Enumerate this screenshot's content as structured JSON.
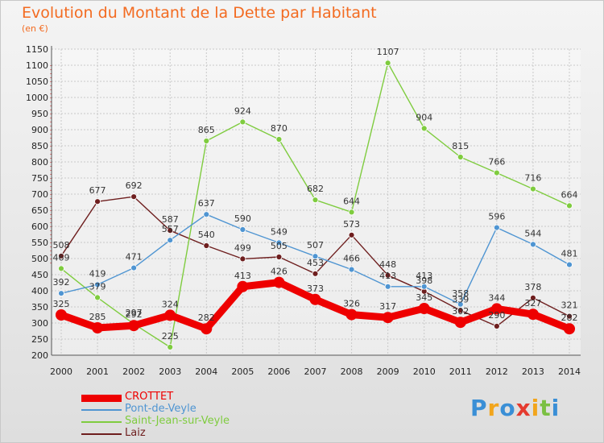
{
  "chart_data": {
    "type": "line",
    "title": "Evolution du Montant de la Dette par Habitant",
    "subtitle": "(en €)",
    "x": [
      "2000",
      "2001",
      "2002",
      "2003",
      "2004",
      "2005",
      "2006",
      "2007",
      "2008",
      "2009",
      "2010",
      "2011",
      "2012",
      "2013",
      "2014"
    ],
    "ylim": [
      200,
      1150
    ],
    "yticks": [
      200,
      250,
      300,
      350,
      400,
      450,
      500,
      550,
      600,
      650,
      700,
      750,
      800,
      850,
      900,
      950,
      1000,
      1050,
      1100,
      1150
    ],
    "grid": true,
    "legend_position": "bottom-left",
    "series": [
      {
        "name": "CROTTET",
        "color": "#ee0000",
        "values": [
          325,
          285,
          292,
          324,
          282,
          413,
          426,
          373,
          326,
          317,
          345,
          302,
          344,
          327,
          282
        ]
      },
      {
        "name": "Pont-de-Veyle",
        "color": "#4f95d2",
        "values": [
          392,
          419,
          471,
          557,
          637,
          590,
          549,
          507,
          466,
          413,
          413,
          358,
          596,
          544,
          481
        ]
      },
      {
        "name": "Saint-Jean-sur-Veyle",
        "color": "#7fcc3f",
        "values": [
          469,
          379,
          297,
          225,
          865,
          924,
          870,
          682,
          644,
          1107,
          904,
          815,
          766,
          716,
          664
        ]
      },
      {
        "name": "Laiz",
        "color": "#6e1e1e",
        "values": [
          508,
          677,
          692,
          587,
          540,
          499,
          505,
          453,
          573,
          448,
          398,
          339,
          290,
          378,
          321
        ]
      }
    ]
  },
  "logo": {
    "letters": [
      "P",
      "r",
      "o",
      "x",
      "i",
      "t",
      "i"
    ],
    "colors": [
      "#3a8fd6",
      "#f2a51c",
      "#3a8fd6",
      "#e53b2f",
      "#f2a51c",
      "#7bc043",
      "#3a8fd6"
    ]
  }
}
